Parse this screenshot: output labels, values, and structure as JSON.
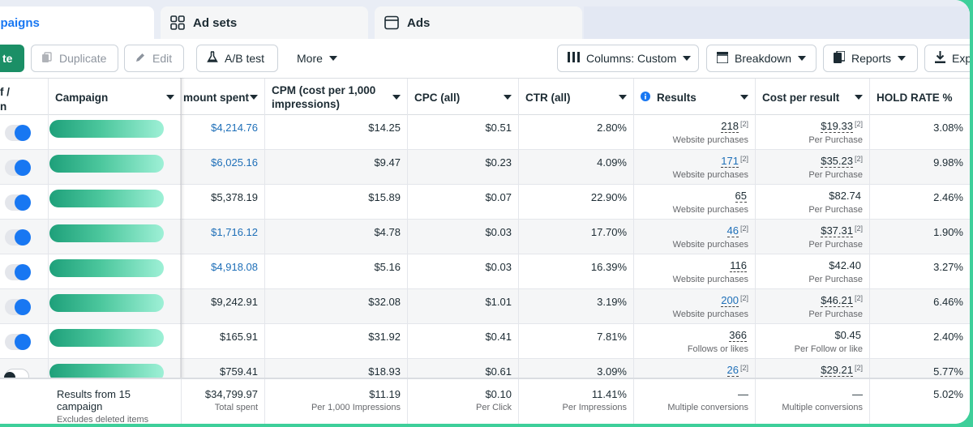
{
  "tabs": {
    "campaigns": "Campaigns",
    "ad_sets": "Ad sets",
    "ads": "Ads"
  },
  "toolbar": {
    "create": "te",
    "duplicate": "Duplicate",
    "edit": "Edit",
    "ab_test": "A/B test",
    "more": "More",
    "columns": "Columns: Custom",
    "breakdown": "Breakdown",
    "reports": "Reports",
    "export": "Exp"
  },
  "headers": {
    "toggle": "f /\nn",
    "campaign": "Campaign",
    "amount_spent": "mount spent",
    "cpm": "CPM (cost per 1,000 impressions)",
    "cpc": "CPC (all)",
    "ctr": "CTR (all)",
    "results": "Results",
    "cost_per_result": "Cost per result",
    "hold_rate": "HOLD RATE %"
  },
  "rows": [
    {
      "on": true,
      "spent": "$4,214.76",
      "spent_link": true,
      "cpm": "$14.25",
      "cpc": "$0.51",
      "ctr": "2.80%",
      "results": "218",
      "results_sup": "[2]",
      "results_sub": "Website purchases",
      "cpr": "$19.33",
      "cpr_sup": "[2]",
      "cpr_sub": "Per Purchase",
      "hold": "3.08%"
    },
    {
      "on": true,
      "spent": "$6,025.16",
      "spent_link": true,
      "cpm": "$9.47",
      "cpc": "$0.23",
      "ctr": "4.09%",
      "results": "171",
      "results_sup": "[2]",
      "results_sub": "Website purchases",
      "cpr": "$35.23",
      "cpr_sup": "[2]",
      "cpr_sub": "Per Purchase",
      "hold": "9.98%"
    },
    {
      "on": true,
      "spent": "$5,378.19",
      "spent_link": false,
      "cpm": "$15.89",
      "cpc": "$0.07",
      "ctr": "22.90%",
      "results": "65",
      "results_sup": "",
      "results_sub": "Website purchases",
      "cpr": "$82.74",
      "cpr_sup": "",
      "cpr_sub": "Per Purchase",
      "hold": "2.46%"
    },
    {
      "on": true,
      "spent": "$1,716.12",
      "spent_link": true,
      "cpm": "$4.78",
      "cpc": "$0.03",
      "ctr": "17.70%",
      "results": "46",
      "results_sup": "[2]",
      "results_sub": "Website purchases",
      "cpr": "$37.31",
      "cpr_sup": "[2]",
      "cpr_sub": "Per Purchase",
      "hold": "1.90%"
    },
    {
      "on": true,
      "spent": "$4,918.08",
      "spent_link": true,
      "cpm": "$5.16",
      "cpc": "$0.03",
      "ctr": "16.39%",
      "results": "116",
      "results_sup": "",
      "results_sub": "Website purchases",
      "cpr": "$42.40",
      "cpr_sup": "",
      "cpr_sub": "Per Purchase",
      "hold": "3.27%"
    },
    {
      "on": true,
      "spent": "$9,242.91",
      "spent_link": false,
      "cpm": "$32.08",
      "cpc": "$1.01",
      "ctr": "3.19%",
      "results": "200",
      "results_sup": "[2]",
      "results_sub": "Website purchases",
      "cpr": "$46.21",
      "cpr_sup": "[2]",
      "cpr_sub": "Per Purchase",
      "hold": "6.46%"
    },
    {
      "on": true,
      "spent": "$165.91",
      "spent_link": false,
      "cpm": "$31.92",
      "cpc": "$0.41",
      "ctr": "7.81%",
      "results": "366",
      "results_sup": "",
      "results_sub": "Follows or likes",
      "cpr": "$0.45",
      "cpr_sup": "",
      "cpr_sub": "Per Follow or like",
      "hold": "2.40%"
    },
    {
      "on": false,
      "spent": "$759.41",
      "spent_link": false,
      "cpm": "$18.93",
      "cpc": "$0.61",
      "ctr": "3.09%",
      "results": "26",
      "results_sup": "[2]",
      "results_sub": "",
      "cpr": "$29.21",
      "cpr_sup": "[2]",
      "cpr_sub": "",
      "hold": "5.77%"
    }
  ],
  "footer": {
    "campaign": "Results from 15 campaign",
    "campaign_sub": "Excludes deleted items",
    "spent": "$34,799.97",
    "spent_sub": "Total spent",
    "cpm": "$11.19",
    "cpm_sub": "Per 1,000 Impressions",
    "cpc": "$0.10",
    "cpc_sub": "Per Click",
    "ctr": "11.41%",
    "ctr_sub": "Per Impressions",
    "results": "—",
    "results_sub": "Multiple conversions",
    "cpr": "—",
    "cpr_sub": "Multiple conversions",
    "hold": "5.02%"
  },
  "colors": {
    "accent": "#1877f2",
    "link": "#1e6fb8",
    "create_button": "#1b8f66",
    "frame_border": "#3ecf9a"
  }
}
